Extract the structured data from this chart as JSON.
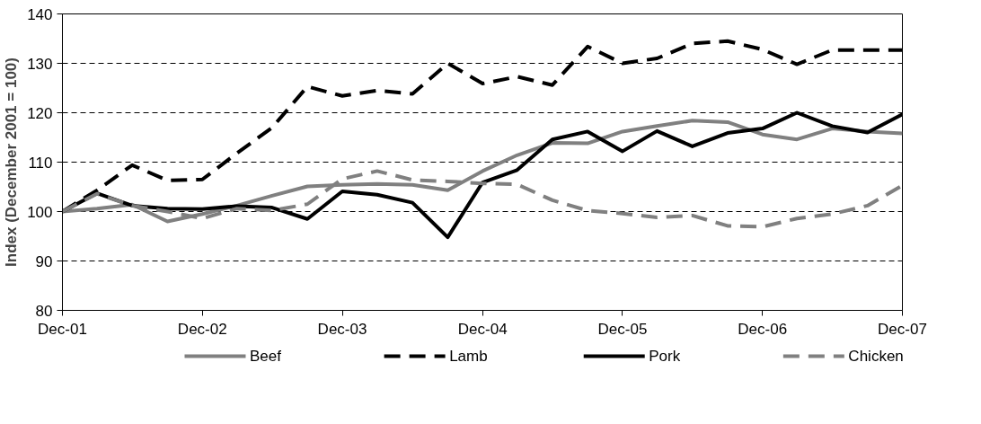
{
  "chart_data": {
    "type": "line",
    "ylabel": "Index (December 2001 = 100)",
    "x": [
      "2001-12",
      "2002-03",
      "2002-06",
      "2002-09",
      "2002-12",
      "2003-03",
      "2003-06",
      "2003-09",
      "2003-12",
      "2004-03",
      "2004-06",
      "2004-09",
      "2004-12",
      "2005-03",
      "2005-06",
      "2005-09",
      "2005-12",
      "2006-03",
      "2006-06",
      "2006-09",
      "2006-12",
      "2007-03",
      "2007-06",
      "2007-09",
      "2007-12"
    ],
    "series": [
      {
        "name": "Beef",
        "color": "#808080",
        "line_style": "solid",
        "values": [
          100,
          100.6,
          101.4,
          98,
          99.5,
          101.2,
          103.2,
          105.1,
          105.4,
          105.6,
          105.4,
          104.3,
          108.2,
          111.4,
          113.9,
          113.8,
          116.2,
          117.3,
          118.4,
          118.1,
          115.6,
          114.6,
          116.8,
          116.2,
          115.8
        ]
      },
      {
        "name": "Lamb",
        "color": "#000000",
        "line_style": "dashed",
        "values": [
          100,
          104.3,
          109.4,
          106.3,
          106.5,
          111.8,
          117,
          125.3,
          123.4,
          124.5,
          123.8,
          130,
          125.9,
          127.3,
          125.6,
          133.4,
          130,
          131,
          134,
          134.5,
          132.8,
          129.8,
          132.7,
          132.7,
          132.7
        ]
      },
      {
        "name": "Pork",
        "color": "#000000",
        "line_style": "solid",
        "values": [
          100,
          103.7,
          101.2,
          100.6,
          100.5,
          101.1,
          100.8,
          98.5,
          104.1,
          103.4,
          101.8,
          94.8,
          105.9,
          108.4,
          114.6,
          116.2,
          112.2,
          116.3,
          113.2,
          115.9,
          116.8,
          120,
          117.3,
          116,
          119.7
        ]
      },
      {
        "name": "Chicken",
        "color": "#808080",
        "line_style": "dashed",
        "values": [
          100,
          103.6,
          101.2,
          100,
          98.6,
          100.6,
          100.2,
          101.5,
          106.6,
          108.2,
          106.4,
          106.1,
          105.7,
          105.5,
          102.3,
          100.2,
          99.6,
          98.8,
          99.2,
          97.1,
          96.9,
          98.6,
          99.5,
          101.2,
          105.3
        ]
      }
    ],
    "xlim": [
      "2001-12",
      "2007-12"
    ],
    "xticks": [
      {
        "value": "2001-12",
        "label": "Dec-01"
      },
      {
        "value": "2002-12",
        "label": "Dec-02"
      },
      {
        "value": "2003-12",
        "label": "Dec-03"
      },
      {
        "value": "2004-12",
        "label": "Dec-04"
      },
      {
        "value": "2005-12",
        "label": "Dec-05"
      },
      {
        "value": "2006-12",
        "label": "Dec-06"
      },
      {
        "value": "2007-12",
        "label": "Dec-07"
      }
    ],
    "ylim": [
      80,
      140
    ],
    "yticks": [
      80,
      90,
      100,
      110,
      120,
      130,
      140
    ],
    "grid": "y",
    "legend": "bottom",
    "marker": "none"
  }
}
